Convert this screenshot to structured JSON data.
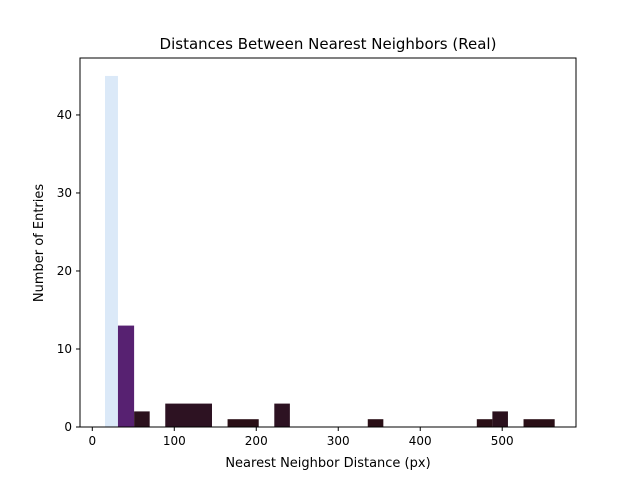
{
  "chart_data": {
    "type": "bar",
    "title": "Distances Between Nearest Neighbors (Real)",
    "xlabel": "Nearest Neighbor Distance (px)",
    "ylabel": "Number of Entries",
    "xlim": [
      -15,
      590
    ],
    "ylim": [
      0,
      47.3
    ],
    "xticks": [
      0,
      100,
      200,
      300,
      400,
      500
    ],
    "yticks": [
      0,
      10,
      20,
      30,
      40
    ],
    "grid": false,
    "bins": [
      {
        "x0": 15.5,
        "x1": 31.3,
        "count": 45,
        "color": "#dbe9f8"
      },
      {
        "x0": 31.3,
        "x1": 51.0,
        "count": 13,
        "color": "#572171"
      },
      {
        "x0": 51.0,
        "x1": 70.0,
        "count": 2,
        "color": "#2b111d"
      },
      {
        "x0": 89.0,
        "x1": 146.0,
        "count": 3,
        "color": "#2d1222"
      },
      {
        "x0": 165.0,
        "x1": 203.0,
        "count": 1,
        "color": "#2a0f16"
      },
      {
        "x0": 222.0,
        "x1": 241.0,
        "count": 3,
        "color": "#2d1222"
      },
      {
        "x0": 336.0,
        "x1": 355.0,
        "count": 1,
        "color": "#2a0f16"
      },
      {
        "x0": 469.0,
        "x1": 488.0,
        "count": 1,
        "color": "#2a0f16"
      },
      {
        "x0": 488.0,
        "x1": 507.0,
        "count": 2,
        "color": "#2b111d"
      },
      {
        "x0": 526.0,
        "x1": 564.0,
        "count": 1,
        "color": "#2a0f16"
      }
    ]
  }
}
